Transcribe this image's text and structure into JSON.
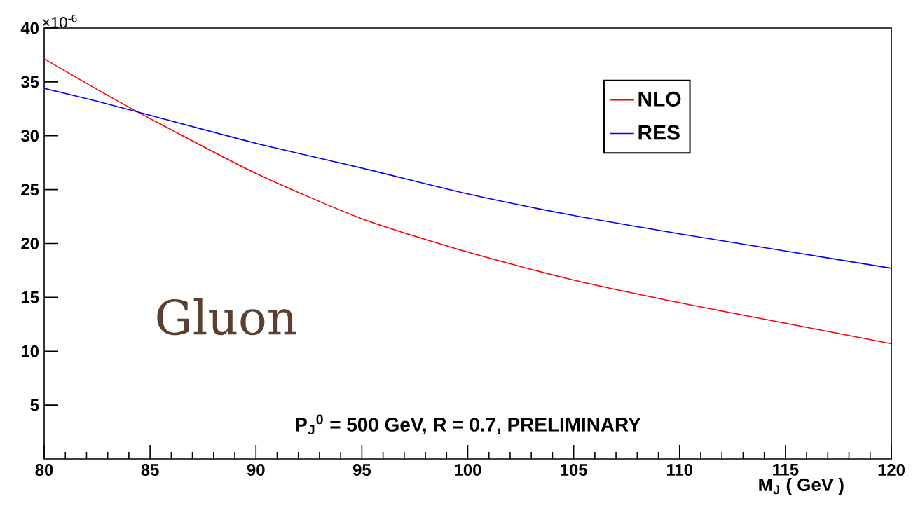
{
  "chart_data": {
    "type": "line",
    "xlabel": "M$_{J}$ ( GeV )",
    "x": [
      80,
      82.5,
      85,
      90,
      95,
      100,
      105,
      110,
      115,
      120
    ],
    "series": [
      {
        "name": "NLO",
        "color": "#ff0000",
        "values": [
          37.15,
          34.3,
          31.6,
          26.5,
          22.3,
          19.2,
          16.6,
          14.5,
          12.6,
          10.7
        ]
      },
      {
        "name": "RES",
        "color": "#0000ff",
        "values": [
          34.4,
          33.2,
          31.9,
          29.3,
          27.0,
          24.6,
          22.6,
          20.9,
          19.3,
          17.7
        ]
      }
    ],
    "xlim": [
      80,
      120
    ],
    "ylim": [
      0,
      40
    ],
    "xticks": [
      80,
      85,
      90,
      95,
      100,
      105,
      110,
      115,
      120
    ],
    "yticks": [
      5,
      10,
      15,
      20,
      25,
      30,
      35,
      40
    ],
    "legend": "top right",
    "grid": false,
    "marker": "none",
    "line_style": "solid",
    "annotations": [
      "×10$^{-6}$",
      "Gluon",
      "P$_{J}$$^{0}$ = 500 GeV,  R = 0.7, PRELIMINARY"
    ]
  }
}
